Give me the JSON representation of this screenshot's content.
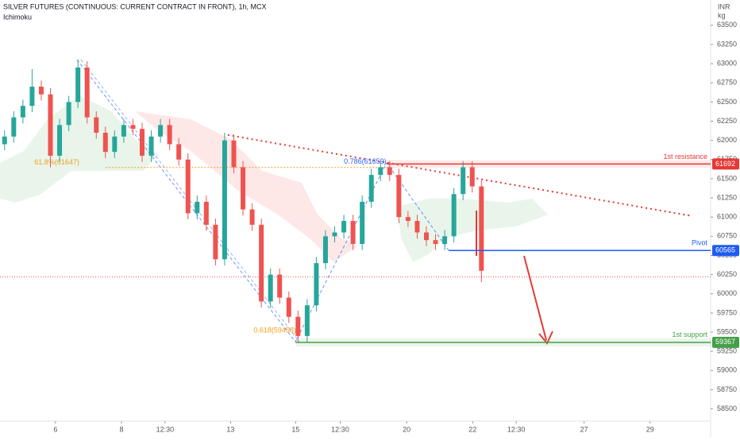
{
  "chart_data": {
    "type": "candlestick",
    "title": "SILVER FUTURES (CONTINUOUS: CURRENT CONTRACT IN FRONT), 1h, MCX",
    "subtitle": "Ichimoku",
    "y_unit": [
      "INR",
      "kg"
    ],
    "up_color": "#26a69a",
    "down_color": "#ef5350",
    "x": [
      1,
      3,
      5,
      7,
      9,
      11,
      13,
      15,
      17,
      19,
      21,
      23,
      25,
      27,
      29,
      31,
      33,
      35,
      37,
      39,
      41,
      43,
      45,
      47,
      49,
      51,
      53,
      55,
      57,
      59,
      61,
      63,
      65,
      67,
      69,
      71,
      73,
      75,
      77,
      79,
      81,
      83,
      85,
      87,
      89,
      91,
      93,
      95,
      97,
      99,
      101,
      103,
      105
    ],
    "open": [
      61950,
      62050,
      62300,
      62450,
      62700,
      62600,
      61800,
      62200,
      62500,
      62950,
      62300,
      62100,
      61850,
      62050,
      62200,
      62150,
      61800,
      62050,
      62200,
      61950,
      61750,
      61050,
      61200,
      60900,
      60450,
      62000,
      61650,
      61100,
      60900,
      59900,
      60250,
      59950,
      59700,
      59450,
      59850,
      60400,
      60750,
      60800,
      60950,
      60650,
      61200,
      61550,
      61650,
      61550,
      61000,
      60950,
      60800,
      60700,
      60650,
      60750,
      61300,
      61650,
      61400
    ],
    "high": [
      62130,
      62380,
      62530,
      62930,
      62780,
      62680,
      62280,
      62580,
      63050,
      63030,
      62380,
      62180,
      62130,
      62280,
      62280,
      62230,
      62130,
      62280,
      62280,
      62030,
      61830,
      61280,
      61280,
      60980,
      62100,
      62080,
      61730,
      61180,
      60980,
      60330,
      60330,
      60030,
      59780,
      59930,
      60480,
      60830,
      60880,
      61030,
      61030,
      61280,
      61630,
      61730,
      61730,
      61630,
      61080,
      61030,
      60880,
      60780,
      60830,
      61380,
      61730,
      61730,
      61480
    ],
    "low": [
      61870,
      61970,
      62220,
      62370,
      62520,
      61650,
      61720,
      62120,
      62420,
      62220,
      62020,
      61770,
      61770,
      61970,
      62070,
      61720,
      61720,
      61970,
      61870,
      61670,
      60970,
      60970,
      60820,
      60370,
      60370,
      61570,
      61020,
      60820,
      59820,
      59820,
      59870,
      59620,
      59370,
      59370,
      59770,
      60320,
      60670,
      60720,
      60570,
      60570,
      61120,
      61470,
      61470,
      60920,
      60870,
      60720,
      60620,
      60570,
      60570,
      60670,
      61220,
      61320,
      60150
    ],
    "close": [
      62050,
      62300,
      62450,
      62700,
      62600,
      61800,
      62200,
      62500,
      62950,
      62300,
      62100,
      61850,
      62050,
      62200,
      62150,
      61800,
      62050,
      62200,
      61950,
      61750,
      61050,
      61200,
      60900,
      60450,
      62000,
      61650,
      61100,
      60900,
      59900,
      60250,
      59950,
      59700,
      59450,
      59850,
      60400,
      60750,
      60800,
      60950,
      60650,
      61200,
      61550,
      61650,
      61550,
      61000,
      60950,
      60800,
      60700,
      60650,
      60750,
      61300,
      61650,
      61400,
      60300
    ],
    "xlim": [
      0,
      155
    ],
    "xticks": [
      {
        "value": 12.1,
        "label": "6"
      },
      {
        "value": 26.5,
        "label": "8"
      },
      {
        "value": 36,
        "label": "12:30"
      },
      {
        "value": 50.3,
        "label": "13"
      },
      {
        "value": 64.5,
        "label": "15"
      },
      {
        "value": 74.2,
        "label": "12:30"
      },
      {
        "value": 88.7,
        "label": "20"
      },
      {
        "value": 103.1,
        "label": "22"
      },
      {
        "value": 112.6,
        "label": "12:30"
      },
      {
        "value": 127.4,
        "label": "27"
      },
      {
        "value": 141.8,
        "label": "29"
      }
    ],
    "ylim": [
      58340,
      63830
    ],
    "yticks": [
      58500,
      58750,
      59000,
      59250,
      59500,
      59750,
      60000,
      60250,
      60500,
      60750,
      61000,
      61250,
      61500,
      61750,
      62000,
      62250,
      62500,
      62750,
      63000,
      63250,
      63500
    ],
    "last_price": 60220,
    "levels": [
      {
        "label": "1st resistance",
        "value": 61692,
        "color": "#e53935",
        "x_start": 84.4
      },
      {
        "label": "Pivot",
        "value": 60565,
        "color": "#1e5bf0",
        "x_start": 97.9
      },
      {
        "label": "1st support",
        "value": 59367,
        "color": "#43a047",
        "x_start": 64.5
      }
    ],
    "fib_labels": [
      {
        "text": "61.8%(61647)",
        "value": 61647,
        "color": "#f0a020",
        "x": 7.5
      },
      {
        "text": "0.786(61659)",
        "value": 61659,
        "color": "#2962ff",
        "x": 75
      },
      {
        "text": "0.618(59458)",
        "value": 59458,
        "color": "#f0a020",
        "x": 55.3
      }
    ],
    "trendline": {
      "x": [
        49.7,
        150.4
      ],
      "y": [
        62070,
        61020
      ],
      "color": "#e53935"
    }
  }
}
